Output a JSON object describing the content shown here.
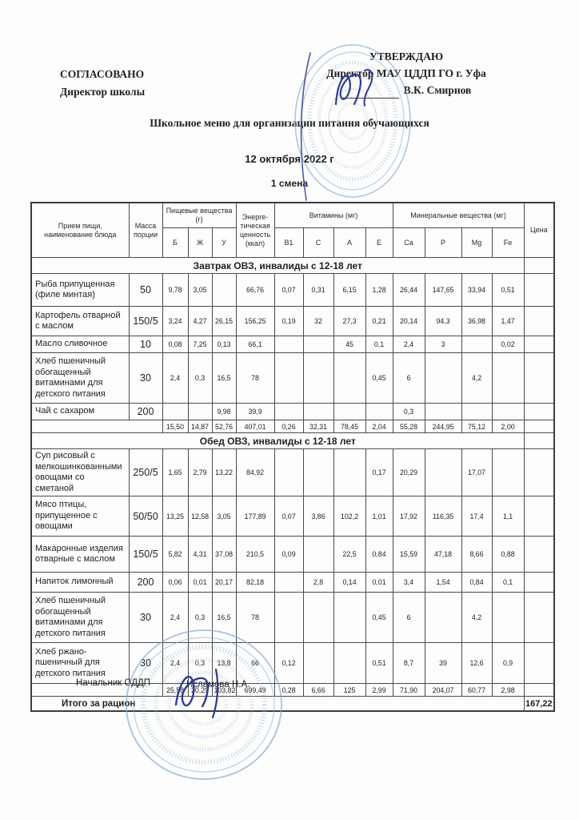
{
  "page": {
    "agreed": {
      "label": "СОГЛАСОВАНО",
      "sub": "Директор школы"
    },
    "approved": {
      "label": "УТВЕРЖДАЮ",
      "org": "Директор МАУ ЦДДП ГО г. Уфа",
      "name": "В.К. Смирнов"
    },
    "title": "Школьное меню для организации питания обучающихся",
    "date": "12 октября 2022 г",
    "shift": "1 смена",
    "footer": {
      "position": "Начальник ОДДП",
      "name": "Исламова Н.А."
    },
    "stamp_color": "#7fa9d6",
    "signature_color": "#2b3a9e"
  },
  "table": {
    "headers": {
      "meal": "Прием пищи, наименование блюда",
      "mass": "Масса порции",
      "nutrients_group": "Пищевые вещества (г)",
      "nutrients": [
        "Б",
        "Ж",
        "У"
      ],
      "energy": "Энерге-тическая ценность (ккал)",
      "vitamins_group": "Витамины (мг)",
      "vitamins": [
        "В1",
        "С",
        "А",
        "Е"
      ],
      "minerals_group": "Минеральные вещества (мг)",
      "minerals": [
        "Ca",
        "P",
        "Mg",
        "Fe"
      ],
      "price": "Цена"
    },
    "sections": [
      {
        "title": "Завтрак ОВЗ, инвалиды с 12-18 лет",
        "rows": [
          {
            "name": "Рыба припущенная (филе минтая)",
            "mass": "50",
            "values": [
              "9,78",
              "3,05",
              "",
              "66,76",
              "0,07",
              "0,31",
              "6,15",
              "1,28",
              "26,44",
              "147,65",
              "33,94",
              "0,51"
            ],
            "price": ""
          },
          {
            "name": "Картофель отварной с маслом",
            "mass": "150/5",
            "values": [
              "3,24",
              "4,27",
              "26,15",
              "156,25",
              "0,19",
              "32",
              "27,3",
              "0,21",
              "20,14",
              "94,3",
              "36,98",
              "1,47"
            ],
            "price": ""
          },
          {
            "name": "Масло сливочное",
            "mass": "10",
            "values": [
              "0,08",
              "7,25",
              "0,13",
              "66,1",
              "",
              "",
              "45",
              "0,1",
              "2,4",
              "3",
              "",
              "0,02"
            ],
            "price": ""
          },
          {
            "name": "Хлеб пшеничный обогащенный витаминами для детского питания",
            "mass": "30",
            "values": [
              "2,4",
              "0,3",
              "16,5",
              "78",
              "",
              "",
              "",
              "0,45",
              "6",
              "",
              "4,2",
              ""
            ],
            "price": ""
          },
          {
            "name": "Чай с сахаром",
            "mass": "200",
            "values": [
              "",
              "",
              "9,98",
              "39,9",
              "",
              "",
              "",
              "",
              "0,3",
              "",
              "",
              ""
            ],
            "price": ""
          }
        ],
        "totals": [
          "15,50",
          "14,87",
          "52,76",
          "407,01",
          "0,26",
          "32,31",
          "78,45",
          "2,04",
          "55,28",
          "244,95",
          "75,12",
          "2,00"
        ]
      },
      {
        "title": "Обед ОВЗ, инвалиды с 12-18 лет",
        "rows": [
          {
            "name": "Суп рисовый с мелкошинкованными овощами со сметаной",
            "mass": "250/5",
            "values": [
              "1,65",
              "2,79",
              "13,22",
              "84,92",
              "",
              "",
              "",
              "0,17",
              "20,29",
              "",
              "17,07",
              ""
            ],
            "price": ""
          },
          {
            "name": "Мясо птицы, припущенное с овощами",
            "mass": "50/50",
            "values": [
              "13,25",
              "12,58",
              "3,05",
              "177,89",
              "0,07",
              "3,86",
              "102,2",
              "1,01",
              "17,92",
              "116,35",
              "17,4",
              "1,1"
            ],
            "price": ""
          },
          {
            "name": "Макаронные изделия отварные с маслом",
            "mass": "150/5",
            "values": [
              "5,82",
              "4,31",
              "37,08",
              "210,5",
              "0,09",
              "",
              "22,5",
              "0,84",
              "15,59",
              "47,18",
              "8,66",
              "0,88"
            ],
            "price": ""
          },
          {
            "name": "Напиток лимонный",
            "mass": "200",
            "values": [
              "0,06",
              "0,01",
              "20,17",
              "82,18",
              "",
              "2,8",
              "0,14",
              "0,01",
              "3,4",
              "1,54",
              "0,84",
              "0,1"
            ],
            "price": ""
          },
          {
            "name": "Хлеб пшеничный обогащенный витаминами для детского питания",
            "mass": "30",
            "values": [
              "2,4",
              "0,3",
              "16,5",
              "78",
              "",
              "",
              "",
              "0,45",
              "6",
              "",
              "4,2",
              ""
            ],
            "price": ""
          },
          {
            "name": "Хлеб ржано-пшеничный для детского питания",
            "mass": "30",
            "values": [
              "2,4",
              "0,3",
              "13,8",
              "66",
              "0,12",
              "",
              "",
              "0,51",
              "8,7",
              "39",
              "12,6",
              "0,9"
            ],
            "price": ""
          }
        ],
        "totals": [
          "25,58",
          "20,29",
          "103,82",
          "699,49",
          "0,28",
          "6,66",
          "125",
          "2,99",
          "71,90",
          "204,07",
          "60,77",
          "2,98"
        ]
      }
    ],
    "grand_total_label": "Итого за рацион",
    "grand_total_value": "167,22"
  }
}
